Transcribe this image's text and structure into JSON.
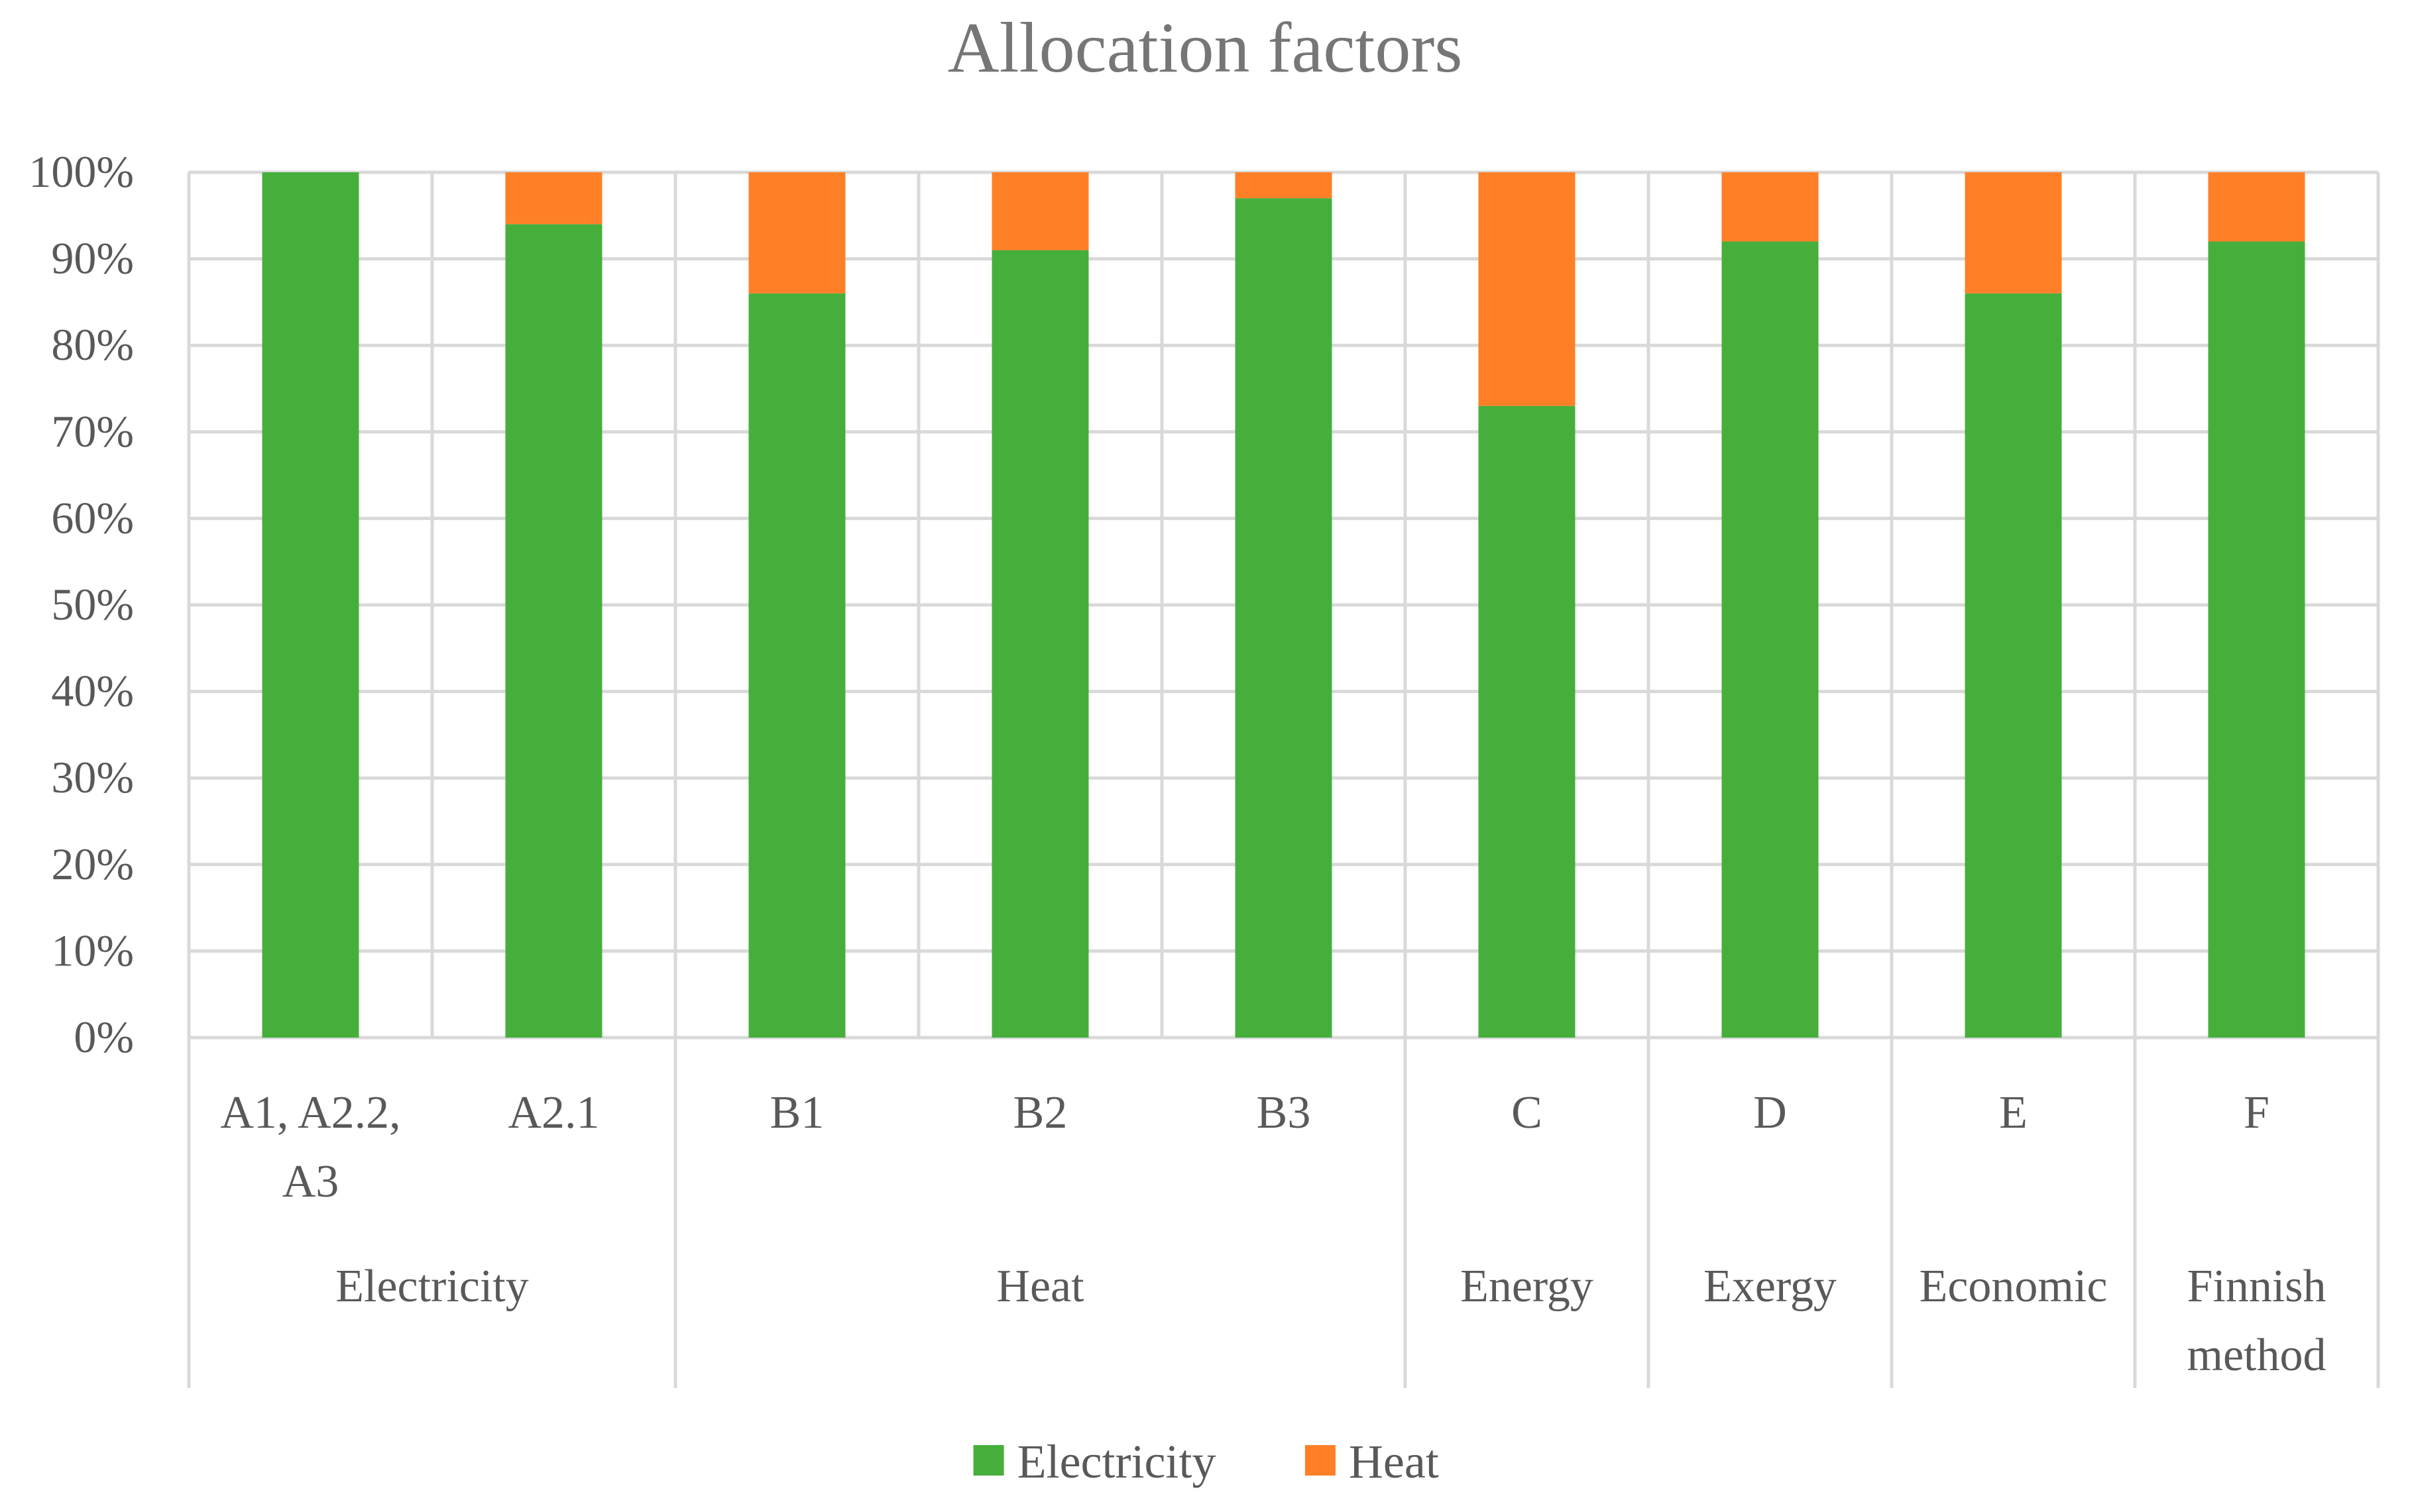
{
  "chart_data": {
    "type": "bar",
    "stacked": true,
    "percent": true,
    "title": "Allocation factors",
    "xlabel": "",
    "ylabel": "",
    "ylim": [
      0,
      100
    ],
    "yticks": [
      "0%",
      "10%",
      "20%",
      "30%",
      "40%",
      "50%",
      "60%",
      "70%",
      "80%",
      "90%",
      "100%"
    ],
    "grid": true,
    "legend_position": "bottom",
    "categories": [
      [
        "A1, A2.2,",
        "A3"
      ],
      [
        "A2.1"
      ],
      [
        "B1"
      ],
      [
        "B2"
      ],
      [
        "B3"
      ],
      [
        "C"
      ],
      [
        "D"
      ],
      [
        "E"
      ],
      [
        "F"
      ]
    ],
    "groups": [
      {
        "label": [
          "Electricity"
        ],
        "span": 2
      },
      {
        "label": [
          "Heat"
        ],
        "span": 3
      },
      {
        "label": [
          "Energy"
        ],
        "span": 1
      },
      {
        "label": [
          "Exergy"
        ],
        "span": 1
      },
      {
        "label": [
          "Economic"
        ],
        "span": 1
      },
      {
        "label": [
          "Finnish",
          "method"
        ],
        "span": 1
      }
    ],
    "series": [
      {
        "name": "Electricity",
        "color": "#46AF3C",
        "values": [
          100,
          94,
          86,
          91,
          97,
          73,
          92,
          86,
          92
        ]
      },
      {
        "name": "Heat",
        "color": "#FF7F27",
        "values": [
          0,
          6,
          14,
          9,
          3,
          27,
          8,
          14,
          8
        ]
      }
    ]
  }
}
